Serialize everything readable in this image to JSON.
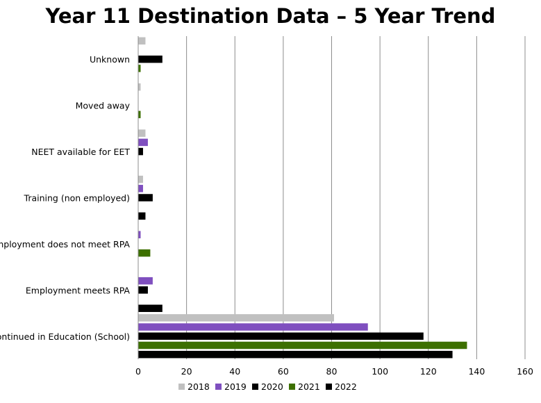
{
  "chart_data": {
    "type": "bar",
    "orientation": "horizontal",
    "title": "Year 11 Destination Data – 5 Year Trend",
    "xlabel": "",
    "ylabel": "",
    "xlim": [
      0,
      160
    ],
    "xticks": [
      0,
      20,
      40,
      60,
      80,
      100,
      120,
      140,
      160
    ],
    "grid": "vertical",
    "legend": "bottom",
    "categories": [
      "Continued in Education (School)",
      "Employment meets RPA",
      "Employment does not meet RPA",
      "Training (non employed)",
      "NEET available for EET",
      "Moved away",
      "Unknown"
    ],
    "series": [
      {
        "name": "2018",
        "color": "#c0c0c0",
        "values": [
          81,
          0,
          0,
          2,
          3,
          1,
          3
        ]
      },
      {
        "name": "2019",
        "color": "#7f4fbf",
        "values": [
          95,
          6,
          1,
          2,
          4,
          0,
          0
        ]
      },
      {
        "name": "2020",
        "color": "#000000",
        "values": [
          118,
          4,
          0,
          6,
          2,
          0,
          10
        ]
      },
      {
        "name": "2021",
        "color": "#3d7000",
        "values": [
          136,
          0,
          5,
          0,
          0,
          1,
          1
        ]
      },
      {
        "name": "2022",
        "color": "#000000",
        "values": [
          130,
          10,
          0,
          3,
          0,
          0,
          0
        ]
      }
    ]
  }
}
